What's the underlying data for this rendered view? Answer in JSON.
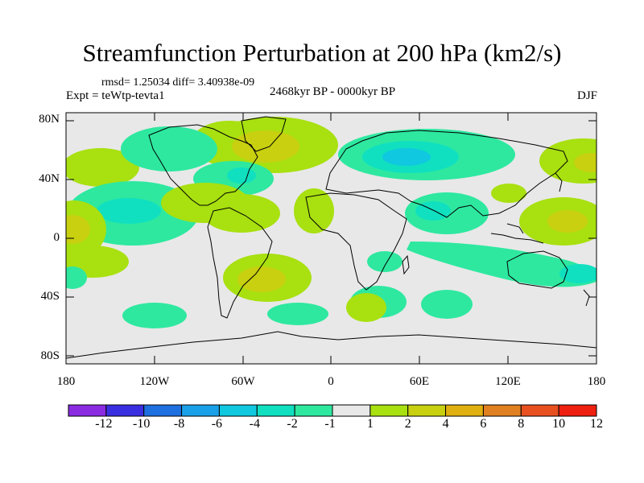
{
  "title": "Streamfunction Perturbation at 200 hPa (km2/s)",
  "stats": "rmsd= 1.25034 diff= 3.40938e-09",
  "period": "2468kyr BP - 0000kyr BP",
  "experiment": "Expt = teWtp-tevta1",
  "season": "DJF",
  "lat_labels": [
    "80N",
    "40N",
    "0",
    "40S",
    "80S"
  ],
  "lon_labels": [
    "180",
    "120W",
    "60W",
    "0",
    "60E",
    "120E",
    "180"
  ],
  "colorbar": {
    "labels": [
      "-12",
      "-10",
      "-8",
      "-6",
      "-4",
      "-2",
      "-1",
      "1",
      "2",
      "4",
      "6",
      "8",
      "10",
      "12"
    ],
    "colors": [
      "#8a2be2",
      "#3a2fe0",
      "#1e6fe0",
      "#1aa0e8",
      "#10c8e0",
      "#10e0c0",
      "#2ee8a0",
      "#e8e8e8",
      "#a8e010",
      "#c8d010",
      "#e0b010",
      "#e08020",
      "#e85020",
      "#ee2010"
    ]
  },
  "colors": {
    "neutral": "#e8e8e8",
    "pos1": "#a8e010",
    "pos2": "#c8d010",
    "neg1": "#2ee8a0",
    "neg2": "#10e0c0",
    "neg3": "#10c8e0"
  }
}
